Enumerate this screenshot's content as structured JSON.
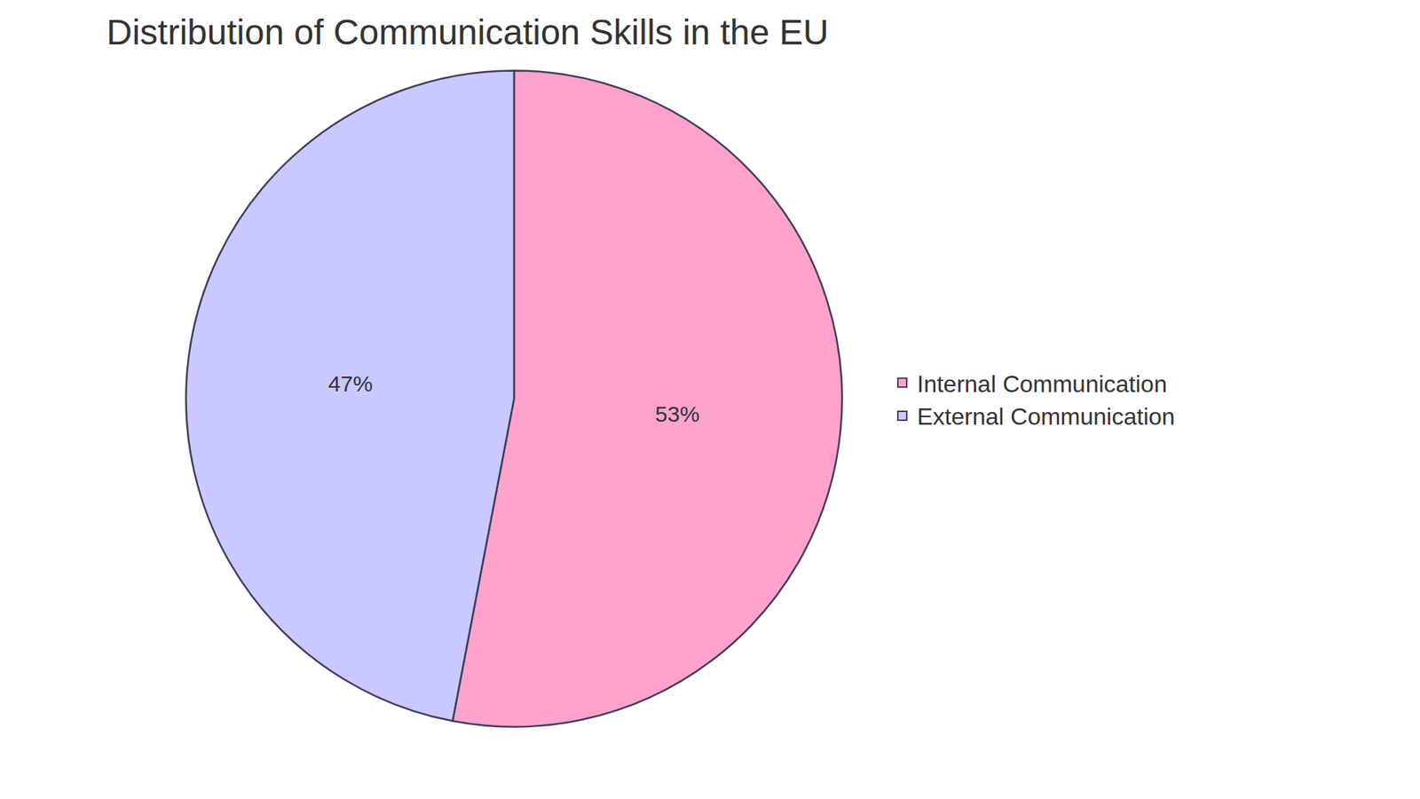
{
  "chart_data": {
    "type": "pie",
    "title": "Distribution of Communication Skills in the EU",
    "categories": [
      "Internal Communication",
      "External Communication"
    ],
    "values": [
      53,
      47
    ],
    "value_labels": [
      "53%",
      "47%"
    ],
    "colors": [
      "#ffa3cd",
      "#c9c9ff"
    ],
    "data_labels": true,
    "legend": "right"
  }
}
